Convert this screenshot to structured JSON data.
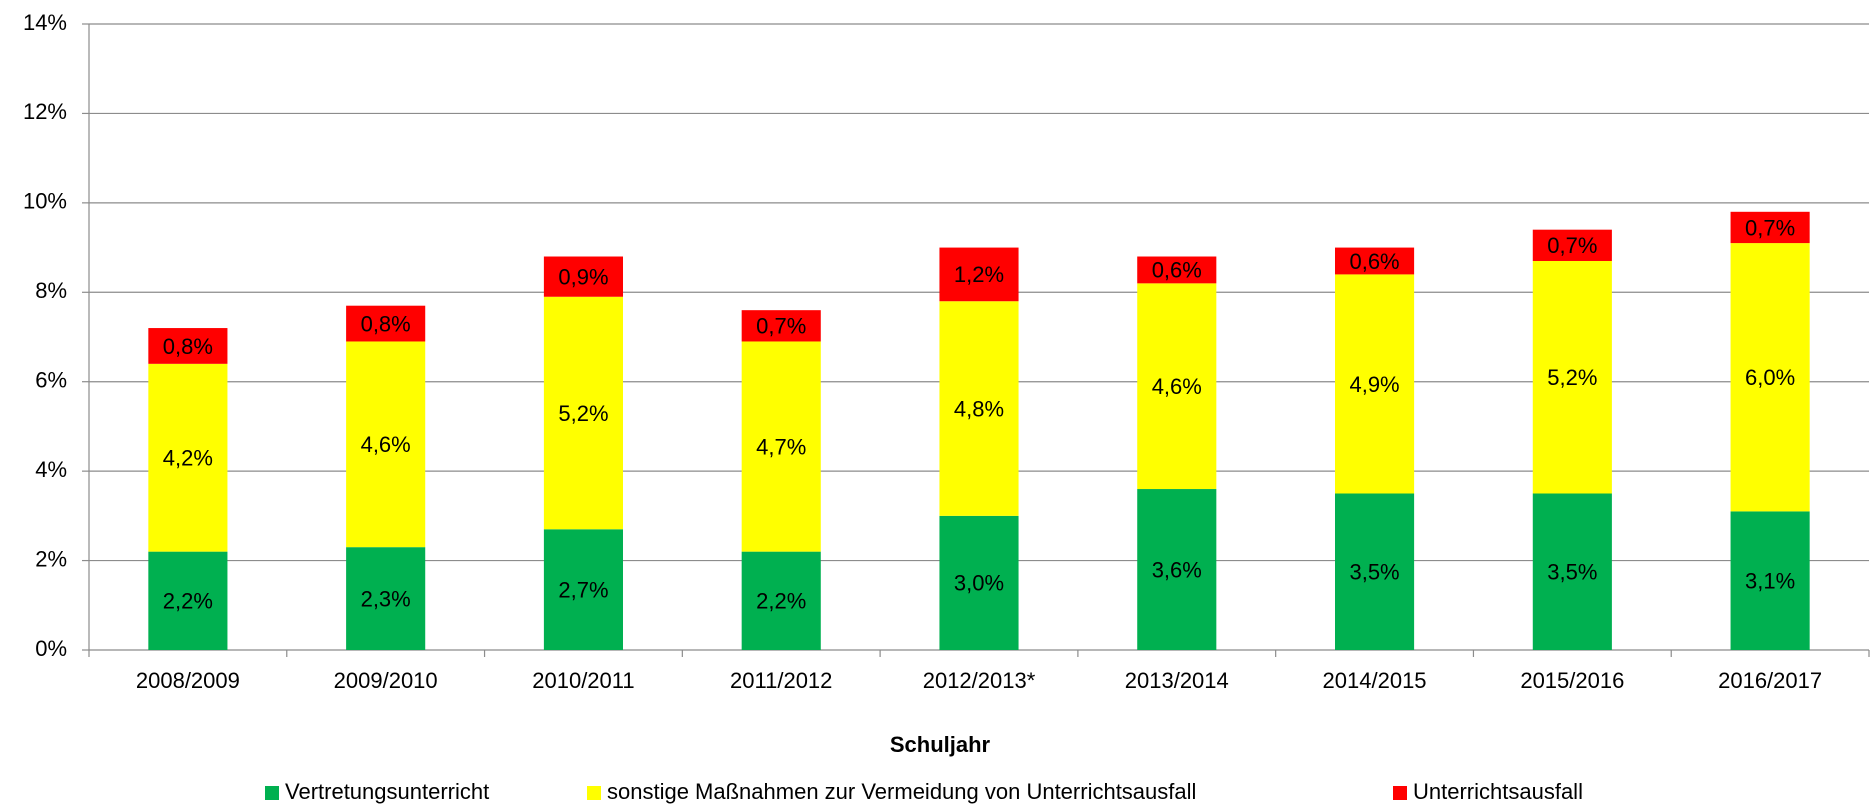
{
  "chart_data": {
    "type": "stacked_bar",
    "x_label": "Schuljahr",
    "categories": [
      "2008/2009",
      "2009/2010",
      "2010/2011",
      "2011/2012",
      "2012/2013*",
      "2013/2014",
      "2014/2015",
      "2015/2016",
      "2016/2017"
    ],
    "series": [
      {
        "name": "Vertretungsunterricht",
        "color": "#00b050",
        "values": [
          2.2,
          2.3,
          2.7,
          2.2,
          3.0,
          3.6,
          3.5,
          3.5,
          3.1
        ],
        "value_labels": [
          "2,2%",
          "2,3%",
          "2,7%",
          "2,2%",
          "3,0%",
          "3,6%",
          "3,5%",
          "3,5%",
          "3,1%"
        ]
      },
      {
        "name": "sonstige Maßnahmen zur Vermeidung von Unterrichtsausfall",
        "color": "#ffff00",
        "values": [
          4.2,
          4.6,
          5.2,
          4.7,
          4.8,
          4.6,
          4.9,
          5.2,
          6.0
        ],
        "value_labels": [
          "4,2%",
          "4,6%",
          "5,2%",
          "4,7%",
          "4,8%",
          "4,6%",
          "4,9%",
          "5,2%",
          "6,0%"
        ]
      },
      {
        "name": "Unterrichtsausfall",
        "color": "#ff0000",
        "values": [
          0.8,
          0.8,
          0.9,
          0.7,
          1.2,
          0.6,
          0.6,
          0.7,
          0.7
        ],
        "value_labels": [
          "0,8%",
          "0,8%",
          "0,9%",
          "0,7%",
          "1,2%",
          "0,6%",
          "0,6%",
          "0,7%",
          "0,7%"
        ]
      }
    ],
    "ylim": [
      0,
      14
    ],
    "yticks": [
      {
        "value": 0,
        "label": "0%"
      },
      {
        "value": 2,
        "label": "2%"
      },
      {
        "value": 4,
        "label": "4%"
      },
      {
        "value": 6,
        "label": "6%"
      },
      {
        "value": 8,
        "label": "8%"
      },
      {
        "value": 10,
        "label": "10%"
      },
      {
        "value": 12,
        "label": "12%"
      },
      {
        "value": 14,
        "label": "14%"
      }
    ],
    "grid": true,
    "legend": "bottom"
  }
}
